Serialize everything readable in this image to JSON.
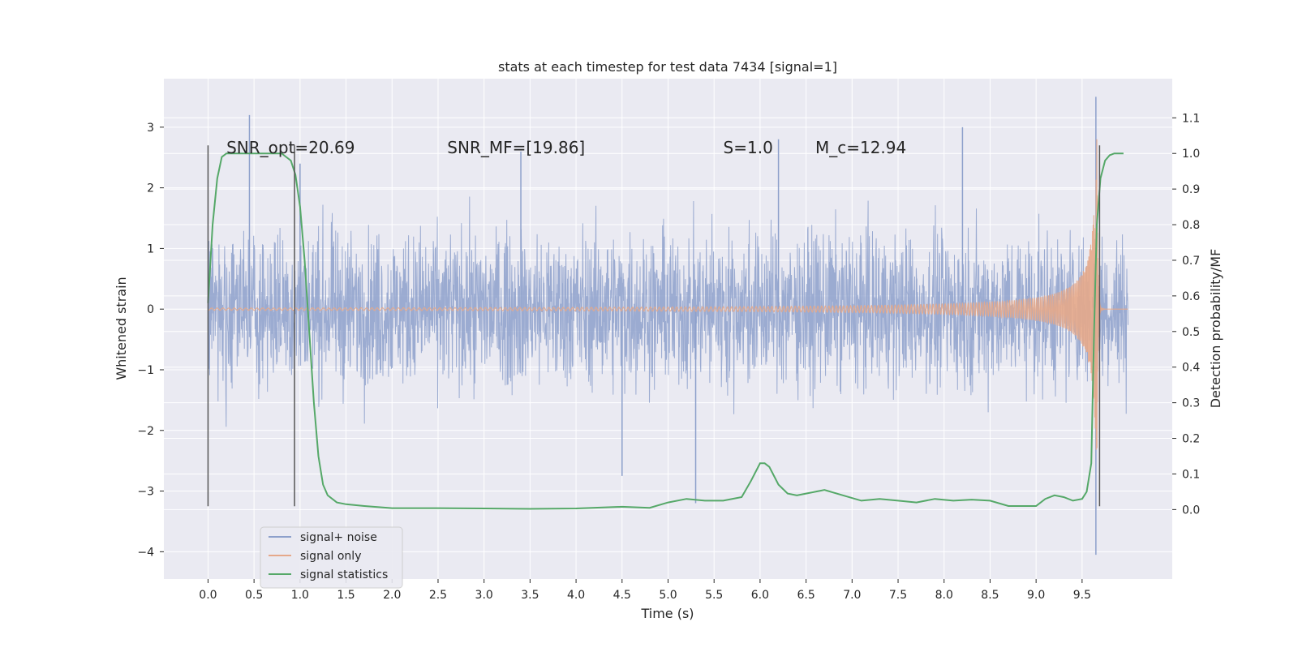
{
  "chart_data": {
    "type": "line",
    "title": "stats at each timestep for test data 7434 [signal=1]",
    "xlabel": "Time (s)",
    "ylabel": "Whitened strain",
    "y2label": "Detection probability/MF",
    "xlim": [
      -0.48,
      10.48
    ],
    "ylim": [
      -4.45,
      3.8
    ],
    "y2lim": [
      -0.195,
      1.21
    ],
    "xticks": [
      0.0,
      0.5,
      1.0,
      1.5,
      2.0,
      2.5,
      3.0,
      3.5,
      4.0,
      4.5,
      5.0,
      5.5,
      6.0,
      6.5,
      7.0,
      7.5,
      8.0,
      8.5,
      9.0,
      9.5
    ],
    "xtick_labels": [
      "0.0",
      "0.5",
      "1.0",
      "1.5",
      "2.0",
      "2.5",
      "3.0",
      "3.5",
      "4.0",
      "4.5",
      "5.0",
      "5.5",
      "6.0",
      "6.5",
      "7.0",
      "7.5",
      "8.0",
      "8.5",
      "9.0",
      "9.5"
    ],
    "yticks": [
      3,
      2,
      1,
      0,
      -1,
      -2,
      -3,
      -4
    ],
    "ytick_labels": [
      "3",
      "2",
      "1",
      "0",
      "−1",
      "−2",
      "−3",
      "−4"
    ],
    "y2ticks": [
      1.1,
      1.0,
      0.9,
      0.8,
      0.7,
      0.6,
      0.5,
      0.4,
      0.3,
      0.2,
      0.1,
      0.0
    ],
    "y2tick_labels": [
      "1.1",
      "1.0",
      "0.9",
      "0.8",
      "0.7",
      "0.6",
      "0.5",
      "0.4",
      "0.3",
      "0.2",
      "0.1",
      "0.0"
    ],
    "grid": true,
    "legend_position": "lower-left",
    "annotations": [
      {
        "text": "SNR_opt=20.69",
        "x": 0.2,
        "y2": 1.0
      },
      {
        "text": "SNR_MF=[19.86]",
        "x": 2.6,
        "y2": 1.0
      },
      {
        "text": "S=1.0",
        "x": 5.6,
        "y2": 1.0
      },
      {
        "text": "M_c=12.94",
        "x": 6.6,
        "y2": 1.0
      }
    ],
    "vlines": [
      {
        "x": 0.0,
        "ymin": -3.25,
        "ymax": 2.7
      },
      {
        "x": 0.94,
        "ymin": -3.25,
        "ymax": 2.7
      },
      {
        "x": 9.69,
        "ymin": -3.25,
        "ymax": 2.7
      }
    ],
    "series": [
      {
        "name": "signal+ noise",
        "color": "#8da0cb",
        "noise_envelope": {
          "t_start": 0.0,
          "t_end": 10.0,
          "typical_peak": 1.6,
          "max_peak": 3.2,
          "min_trough": -2.9
        },
        "peaks": [
          [
            0.45,
            3.2
          ],
          [
            1.0,
            2.4
          ],
          [
            3.4,
            2.6
          ],
          [
            6.2,
            2.8
          ],
          [
            8.2,
            3.0
          ],
          [
            9.65,
            3.5
          ],
          [
            9.65,
            -4.05
          ],
          [
            5.3,
            -3.2
          ],
          [
            4.5,
            -2.75
          ]
        ]
      },
      {
        "name": "signal only",
        "color": "#e5a88a",
        "chirp": {
          "t_start": 0.0,
          "t_merge": 9.66,
          "t_end": 10.0,
          "peak_amplitude": 2.8
        }
      },
      {
        "name": "signal statistics",
        "color": "#55a868",
        "axis": "right",
        "x": [
          0.0,
          0.05,
          0.1,
          0.15,
          0.2,
          0.3,
          0.5,
          0.7,
          0.8,
          0.85,
          0.9,
          0.95,
          1.0,
          1.05,
          1.1,
          1.15,
          1.2,
          1.25,
          1.3,
          1.4,
          1.5,
          1.7,
          2.0,
          2.5,
          3.0,
          3.5,
          4.0,
          4.5,
          4.8,
          5.0,
          5.2,
          5.4,
          5.6,
          5.8,
          5.9,
          6.0,
          6.05,
          6.1,
          6.2,
          6.3,
          6.4,
          6.5,
          6.7,
          6.9,
          7.1,
          7.3,
          7.5,
          7.7,
          7.9,
          8.1,
          8.3,
          8.5,
          8.7,
          8.9,
          9.0,
          9.1,
          9.2,
          9.3,
          9.4,
          9.5,
          9.55,
          9.6,
          9.63,
          9.66,
          9.7,
          9.75,
          9.8,
          9.85,
          9.9,
          9.95
        ],
        "y": [
          0.58,
          0.8,
          0.93,
          0.99,
          1.0,
          1.0,
          1.0,
          1.0,
          1.0,
          0.99,
          0.98,
          0.94,
          0.85,
          0.7,
          0.5,
          0.3,
          0.15,
          0.07,
          0.04,
          0.02,
          0.015,
          0.01,
          0.004,
          0.004,
          0.003,
          0.002,
          0.003,
          0.008,
          0.005,
          0.02,
          0.03,
          0.025,
          0.025,
          0.035,
          0.08,
          0.13,
          0.13,
          0.12,
          0.07,
          0.045,
          0.04,
          0.045,
          0.055,
          0.04,
          0.025,
          0.03,
          0.025,
          0.02,
          0.03,
          0.025,
          0.028,
          0.025,
          0.01,
          0.01,
          0.01,
          0.03,
          0.04,
          0.035,
          0.025,
          0.03,
          0.05,
          0.13,
          0.5,
          0.8,
          0.93,
          0.98,
          0.995,
          1.0,
          1.0,
          1.0
        ]
      }
    ]
  }
}
